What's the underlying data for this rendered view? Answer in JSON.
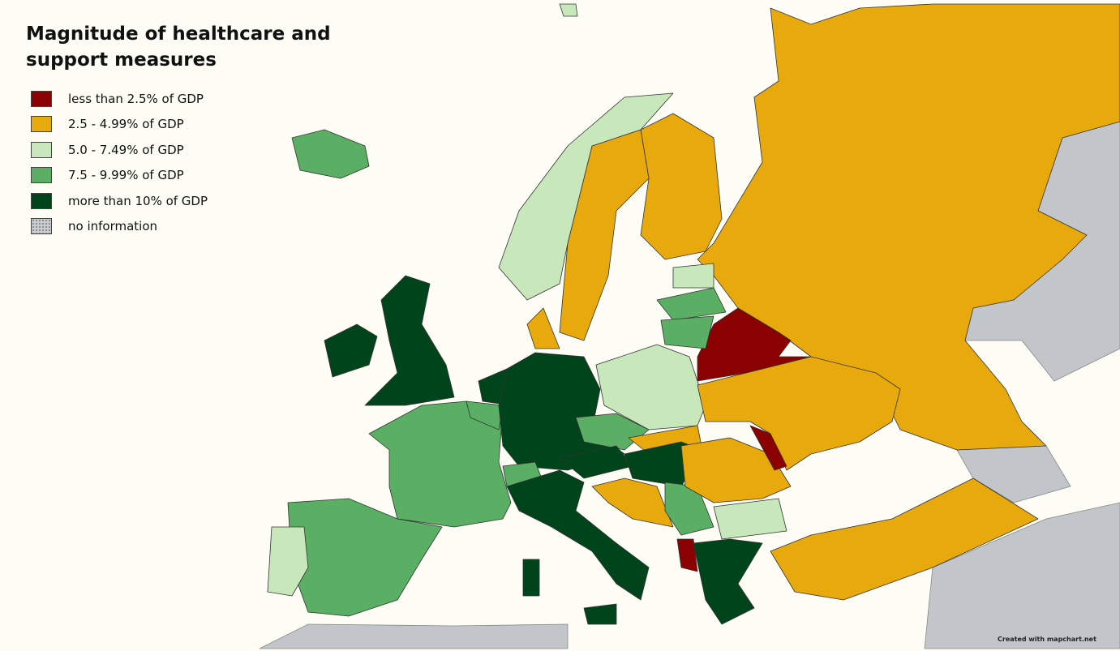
{
  "title": "Magnitude of healthcare and support measures",
  "legend": [
    {
      "label": "less than 2.5% of GDP",
      "color": "#8b0000"
    },
    {
      "label": "2.5 - 4.99% of GDP",
      "color": "#e8a90c"
    },
    {
      "label": "5.0 - 7.49% of GDP",
      "color": "#c8e8bc"
    },
    {
      "label": "7.5 - 9.99% of GDP",
      "color": "#5aaf64"
    },
    {
      "label": "more than 10% of GDP",
      "color": "#00441b"
    },
    {
      "label": "no information",
      "color": "#c9cdd0",
      "pattern": "dotted"
    }
  ],
  "credit": "Created with mapchart.net"
}
